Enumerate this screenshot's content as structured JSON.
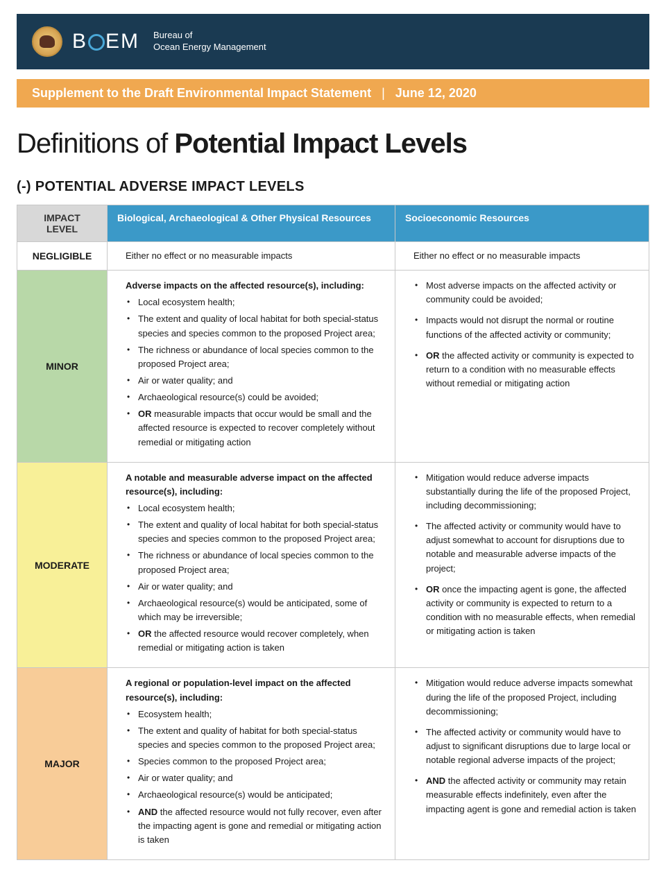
{
  "colors": {
    "header_bg": "#1a3a52",
    "orange_bar_bg": "#f0a850",
    "teal_header_bg": "#3b99c8",
    "gray_header_bg": "#d8d8d8",
    "minor_bg": "#b8d8a8",
    "moderate_bg": "#f8f098",
    "major_bg": "#f8cc98",
    "border": "#c8c8c8"
  },
  "header": {
    "logo_text_left": "B",
    "logo_text_right": "EM",
    "agency_line1": "Bureau of",
    "agency_line2": "Ocean Energy Management"
  },
  "supplement_bar": {
    "title": "Supplement to the Draft Environmental Impact Statement",
    "separator": "|",
    "date": "June 12, 2020"
  },
  "page_title": {
    "prefix": "Definitions of ",
    "bold": "Potential Impact Levels"
  },
  "section_heading": "(-) POTENTIAL ADVERSE IMPACT LEVELS",
  "table": {
    "headers": {
      "level": "IMPACT LEVEL",
      "bio": "Biological, Archaeological & Other Physical Resources",
      "socio": "Socioeconomic Resources"
    },
    "rows": {
      "negligible": {
        "label": "NEGLIGIBLE",
        "bio_text": "Either no effect or no measurable impacts",
        "socio_text": "Either no effect or no measurable impacts"
      },
      "minor": {
        "label": "MINOR",
        "bio_lead": "Adverse impacts on the affected resource(s), including:",
        "bio_items": [
          "Local ecosystem health;",
          "The extent and quality of local habitat for both special-status species and species common to the proposed Project area;",
          "The richness or abundance of local species common to the proposed Project area;",
          "Air or water quality; and",
          "Archaeological resource(s) could be avoided;"
        ],
        "bio_or": " measurable impacts that occur would be small and the affected resource is expected to recover completely without remedial or mitigating action",
        "socio_items": [
          "Most adverse impacts on the affected activity or community could be avoided;",
          "Impacts would not disrupt the normal or routine functions of the affected activity or community;"
        ],
        "socio_or": " the affected activity or community is expected to return to a condition with no measurable effects without remedial or mitigating action"
      },
      "moderate": {
        "label": "MODERATE",
        "bio_lead": "A notable and measurable adverse impact on the affected resource(s), including:",
        "bio_items": [
          "Local ecosystem health;",
          "The extent and quality of local habitat for both special-status species and species common to the proposed Project area;",
          "The richness or abundance of local species common to the proposed Project area;",
          "Air or water quality; and",
          "Archaeological resource(s) would be anticipated, some of which may be irreversible;"
        ],
        "bio_or": " the affected resource would recover completely, when remedial or mitigating action is taken",
        "socio_items": [
          "Mitigation would reduce adverse impacts substantially during the life of the proposed Project, including decommissioning;",
          "The affected activity or community would have to adjust somewhat to account for disruptions due to notable and measurable adverse impacts of the project;"
        ],
        "socio_or": " once the impacting agent is gone, the affected activity or community is expected to return to a condition with no measurable effects, when remedial or mitigating action is taken"
      },
      "major": {
        "label": "MAJOR",
        "bio_lead": "A regional or population-level impact on the affected resource(s), including:",
        "bio_items": [
          "Ecosystem health;",
          "The extent and quality of habitat for both special-status species and species common to the proposed Project area;",
          "Species common to the proposed Project area;",
          "Air or water quality; and",
          "Archaeological resource(s) would be anticipated;"
        ],
        "bio_and": " the affected resource would not fully recover, even after the impacting agent is gone and remedial or mitigating action is taken",
        "socio_items": [
          "Mitigation would reduce adverse impacts somewhat during the life of the proposed Project, including decommissioning;",
          "The affected activity or community would have to adjust to significant disruptions due to large local or notable regional adverse impacts of the project;"
        ],
        "socio_and": " the affected activity or community may retain measurable effects indefinitely, even after the impacting agent is gone and remedial action is taken"
      }
    }
  },
  "logic_words": {
    "or": "OR",
    "and": "AND"
  }
}
